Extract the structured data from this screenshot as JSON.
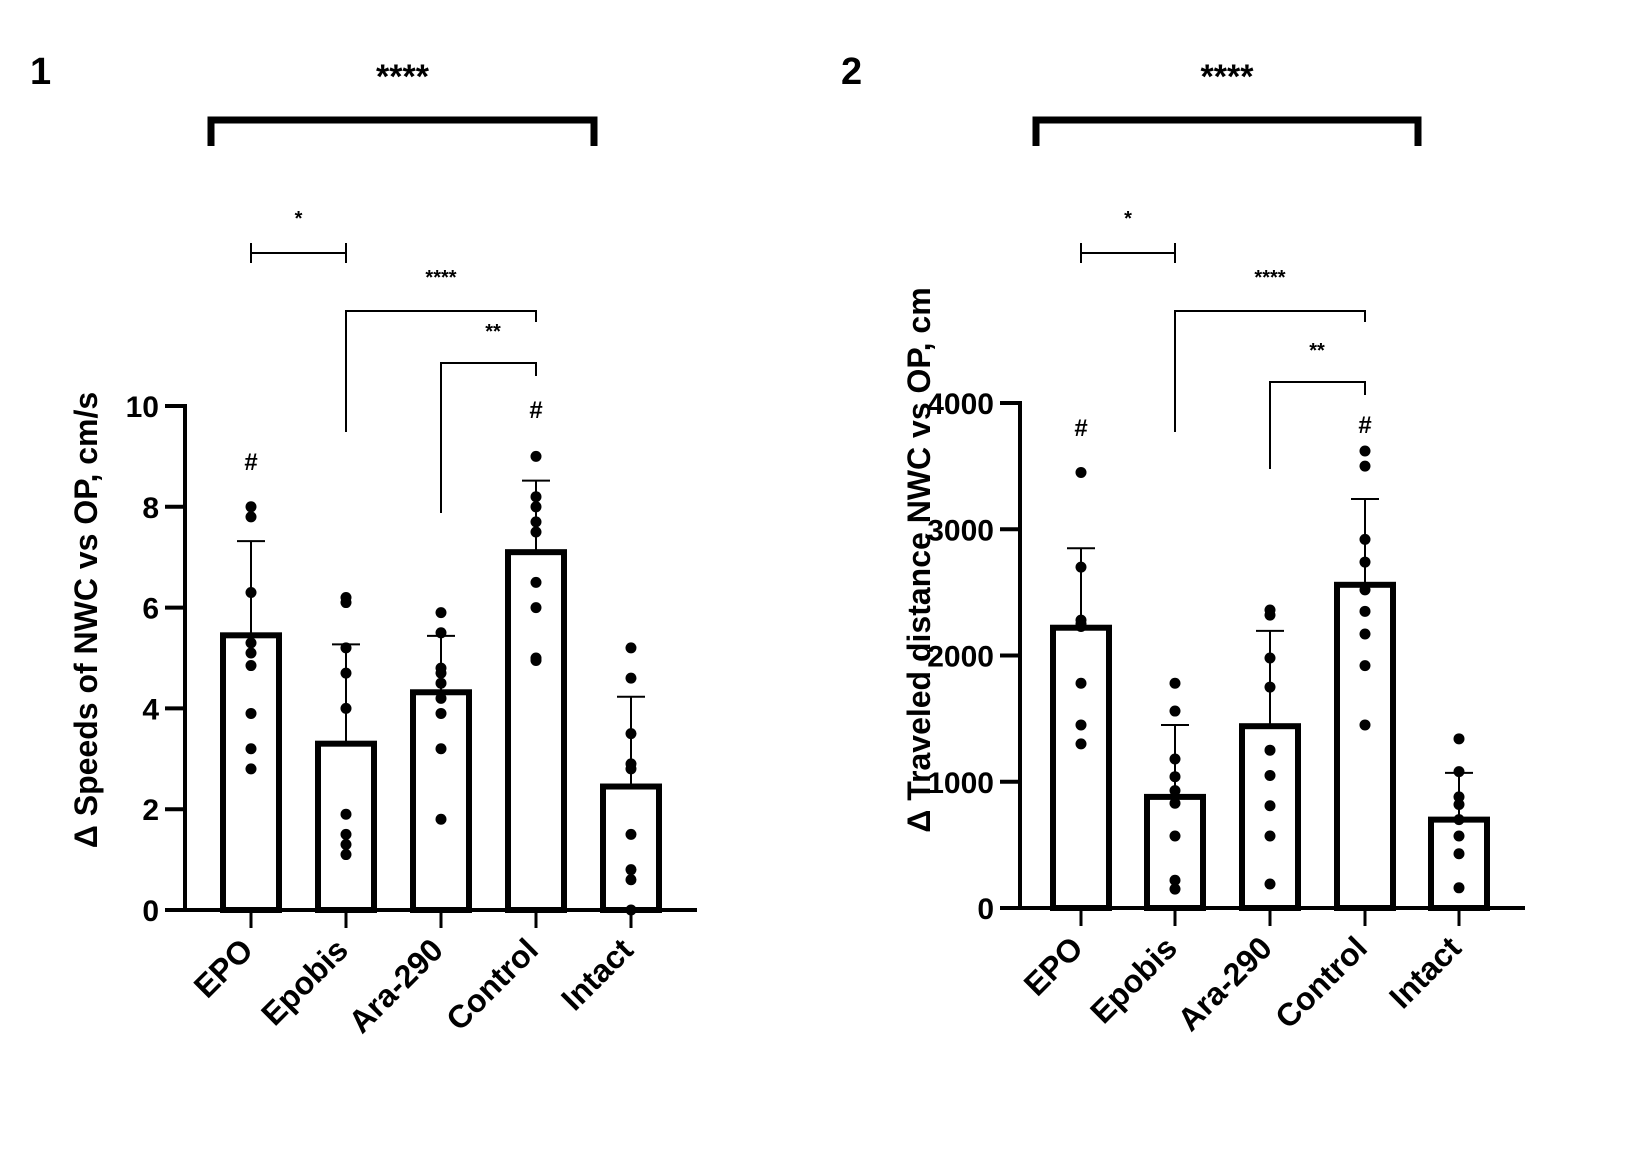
{
  "chart_data": [
    {
      "type": "bar",
      "panel": "1",
      "title": "",
      "xlabel": "",
      "ylabel": "Δ Speeds of NWC vs OP, cm/s",
      "ylim": [
        0,
        10
      ],
      "yticks": [
        0,
        2,
        4,
        6,
        8,
        10
      ],
      "categories": [
        "EPO",
        "Epobis",
        "Ara-290",
        "Control",
        "Intact"
      ],
      "values": [
        5.45,
        3.3,
        4.32,
        7.1,
        2.45
      ],
      "error_upper": [
        7.32,
        5.27,
        5.44,
        8.52,
        4.23
      ],
      "points": [
        [
          8.0,
          7.8,
          6.3,
          5.3,
          5.1,
          4.85,
          3.9,
          3.2,
          2.8
        ],
        [
          6.2,
          6.1,
          5.2,
          4.7,
          4.0,
          1.9,
          1.5,
          1.3,
          1.1
        ],
        [
          5.9,
          5.5,
          4.8,
          4.7,
          4.5,
          4.2,
          3.9,
          3.2,
          1.8
        ],
        [
          9.0,
          8.2,
          8.0,
          7.7,
          7.5,
          6.5,
          6.0,
          5.0,
          4.95
        ],
        [
          5.2,
          4.6,
          3.5,
          2.9,
          2.8,
          1.5,
          0.8,
          0.6,
          0.0
        ]
      ],
      "markers": [
        {
          "category": "EPO",
          "symbol": "#"
        },
        {
          "category": "Control",
          "symbol": "#"
        }
      ],
      "significance": [
        {
          "from": "EPO",
          "to": "Intact",
          "label": "****"
        },
        {
          "from": "EPO",
          "to": "Epobis",
          "label": "*"
        },
        {
          "from": "Epobis",
          "to": "Control",
          "label": "****"
        },
        {
          "from": "Ara-290",
          "to": "Control",
          "label": "**"
        }
      ]
    },
    {
      "type": "bar",
      "panel": "2",
      "title": "",
      "xlabel": "",
      "ylabel": "Δ Traveled distance NWC vs OP, cm",
      "ylim": [
        0,
        4000
      ],
      "yticks": [
        0,
        1000,
        2000,
        3000,
        4000
      ],
      "categories": [
        "EPO",
        "Epobis",
        "Ara-290",
        "Control",
        "Intact"
      ],
      "values": [
        2220,
        880,
        1440,
        2560,
        700
      ],
      "error_upper": [
        2850,
        1450,
        2195,
        3240,
        1070
      ],
      "points": [
        [
          3450,
          2700,
          2280,
          2250,
          2230,
          1780,
          1450,
          1300
        ],
        [
          1780,
          1560,
          1180,
          1040,
          930,
          830,
          570,
          220,
          150
        ],
        [
          2360,
          2320,
          1980,
          1750,
          1250,
          1050,
          810,
          570,
          190
        ],
        [
          3620,
          3500,
          2920,
          2740,
          2520,
          2350,
          2170,
          1920,
          1450
        ],
        [
          1340,
          1080,
          880,
          820,
          700,
          570,
          430,
          160
        ]
      ],
      "markers": [
        {
          "category": "EPO",
          "symbol": "#"
        },
        {
          "category": "Control",
          "symbol": "#"
        }
      ],
      "significance": [
        {
          "from": "EPO",
          "to": "Intact",
          "label": "****"
        },
        {
          "from": "EPO",
          "to": "Epobis",
          "label": "*"
        },
        {
          "from": "Epobis",
          "to": "Control",
          "label": "****"
        },
        {
          "from": "Ara-290",
          "to": "Control",
          "label": "**"
        }
      ]
    }
  ]
}
